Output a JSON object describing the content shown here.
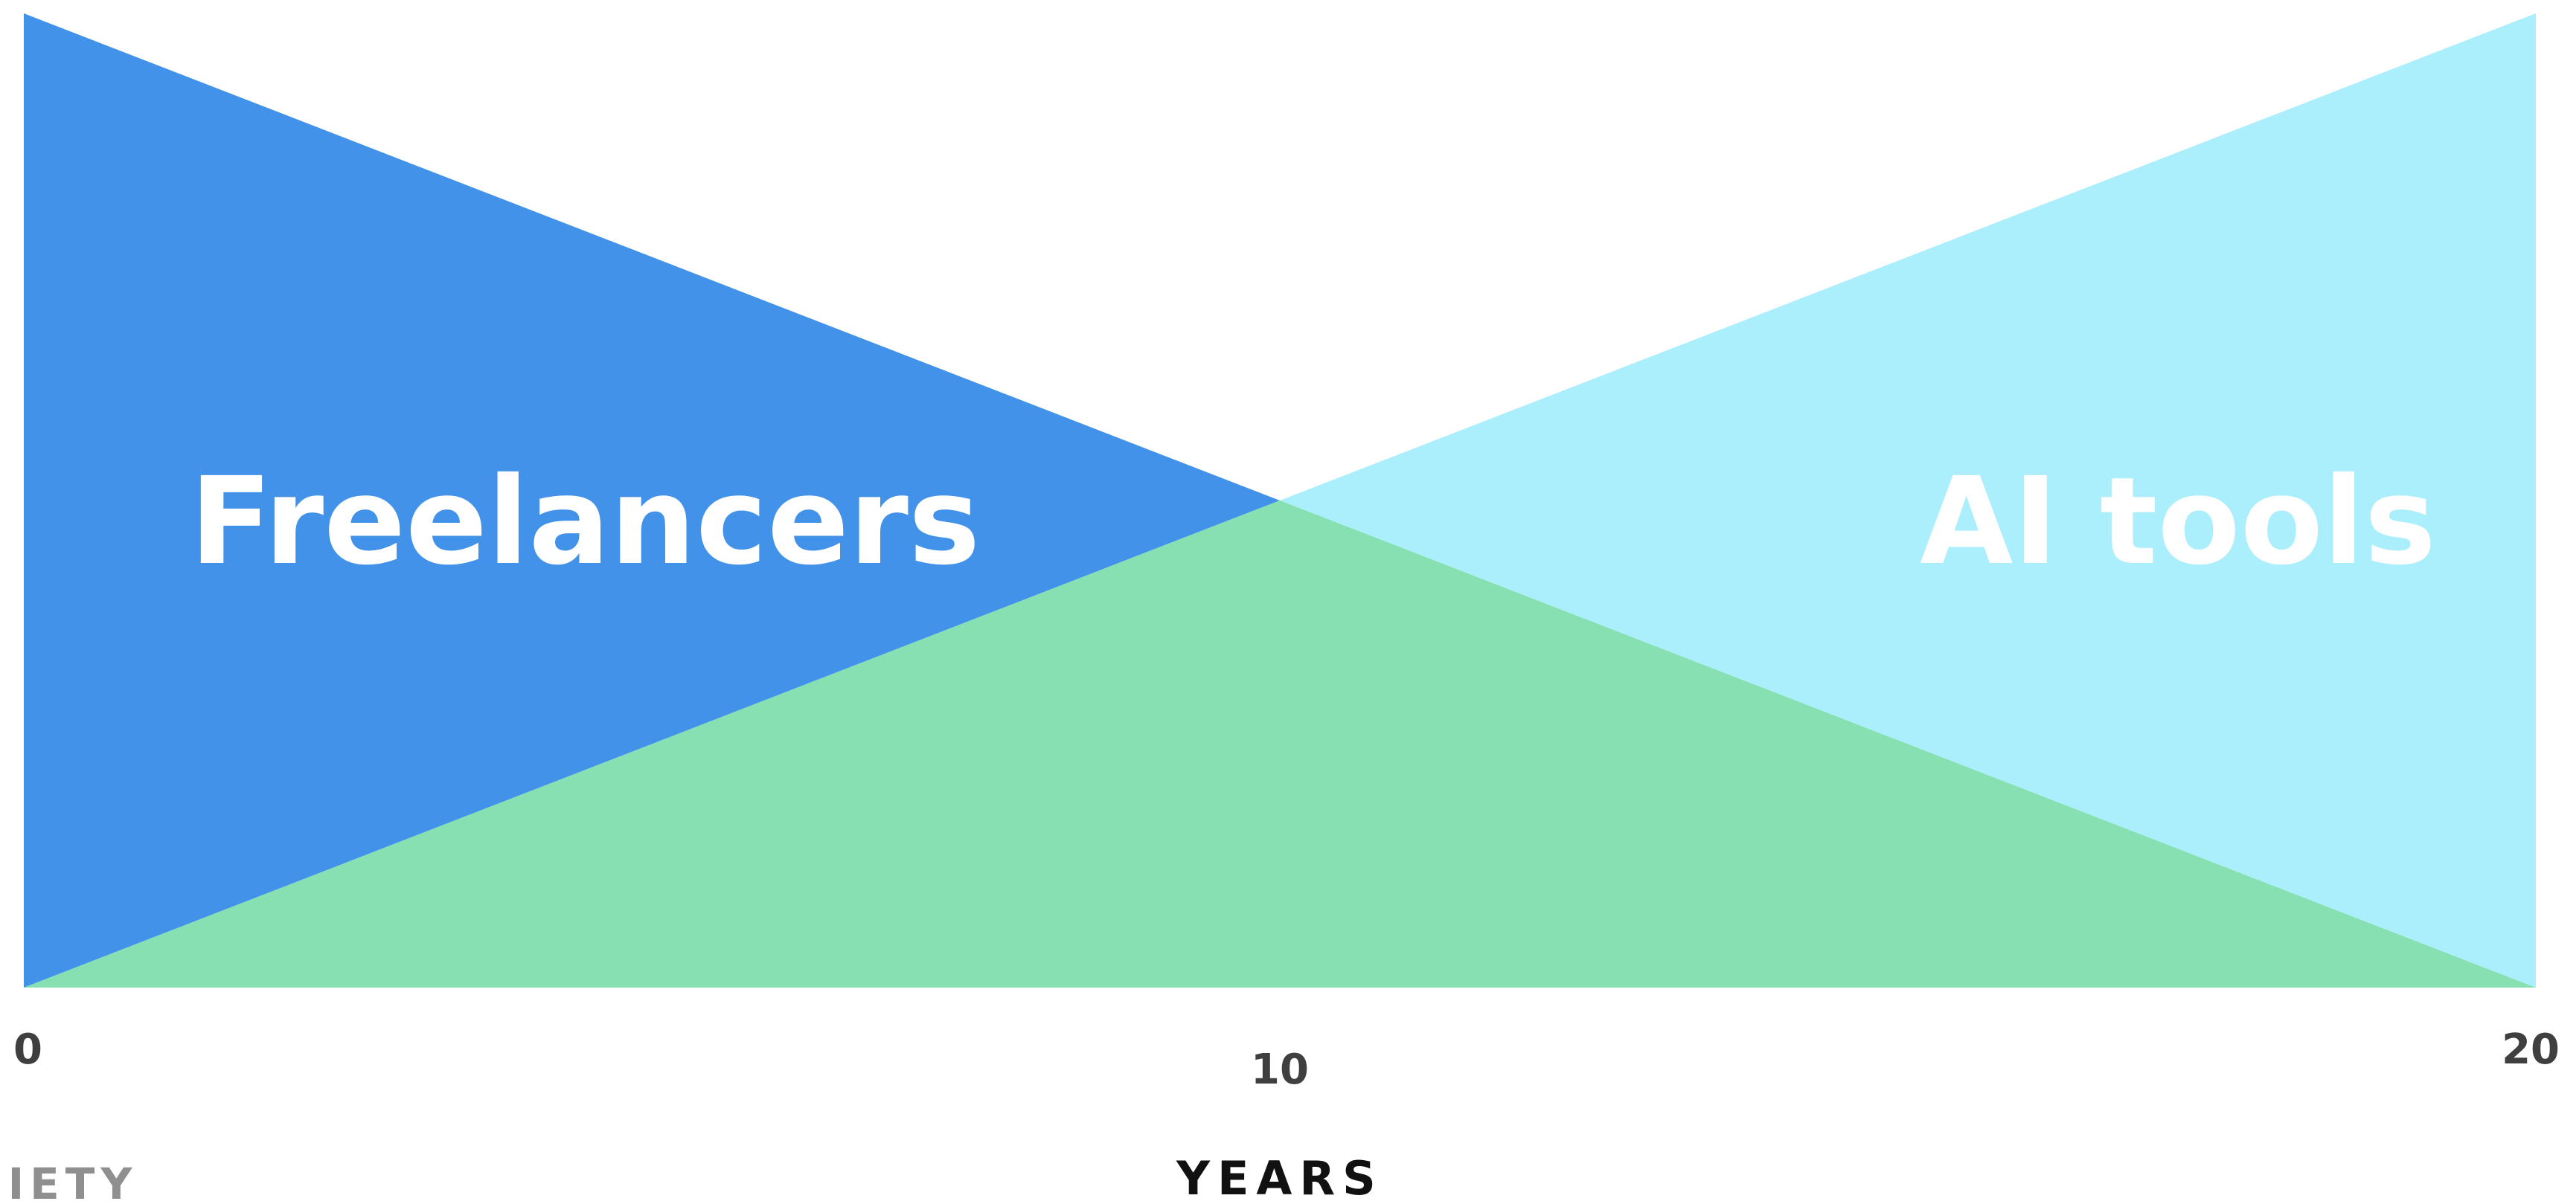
{
  "chart_data": {
    "type": "area",
    "x": [
      0,
      10,
      20
    ],
    "xlabel": "YEARS",
    "ylabel": "",
    "xlim": [
      0,
      20
    ],
    "ylim": [
      0,
      1
    ],
    "x_ticks": [
      "0",
      "10",
      "20"
    ],
    "grid": false,
    "legend": "none",
    "series": [
      {
        "name": "Freelancers",
        "values": [
          1,
          0.5,
          0
        ],
        "color": "#4392EA"
      },
      {
        "name": "AI tools",
        "values": [
          0,
          0.5,
          1
        ],
        "color": "#ABEEFC"
      }
    ],
    "overlap_color": "#86E0B2"
  },
  "footer": {
    "source_fragment": "CIETY"
  }
}
